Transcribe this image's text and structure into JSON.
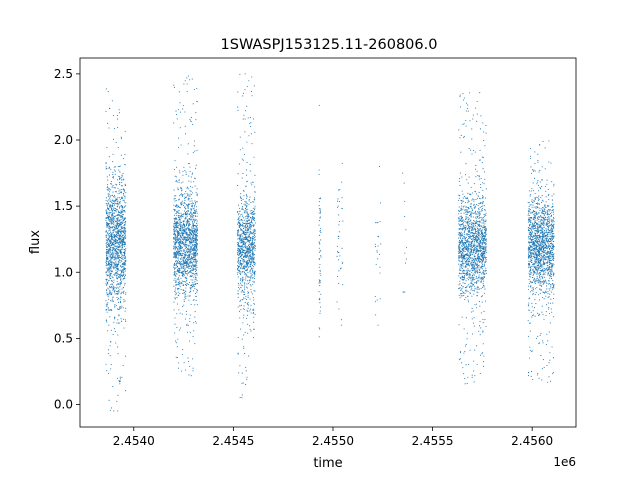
{
  "chart_data": {
    "type": "scatter",
    "title": "1SWASPJ153125.11-260806.0",
    "xlabel": "time",
    "ylabel": "flux",
    "x_offset_label": "1e6",
    "x_scale": 1000000,
    "xlim": [
      2.45373,
      2.45622
    ],
    "ylim": [
      -0.17,
      2.62
    ],
    "x_ticks": [
      2.454,
      2.4545,
      2.455,
      2.4555,
      2.456
    ],
    "x_tick_labels": [
      "2.4540",
      "2.4545",
      "2.4550",
      "2.4555",
      "2.4560"
    ],
    "y_ticks": [
      0.0,
      0.5,
      1.0,
      1.5,
      2.0,
      2.5
    ],
    "y_tick_labels": [
      "0.0",
      "0.5",
      "1.0",
      "1.5",
      "2.0",
      "2.5"
    ],
    "grid": false,
    "marker_color": "#1f77b4",
    "marker": "point",
    "seasons": [
      {
        "x_range": [
          2.45386,
          2.45396
        ],
        "center": 1.22,
        "spread": 0.24,
        "y_range": [
          -0.05,
          2.46
        ],
        "n": 1400
      },
      {
        "x_range": [
          2.4542,
          2.45432
        ],
        "center": 1.22,
        "spread": 0.2,
        "y_range": [
          0.18,
          2.49
        ],
        "n": 1500
      },
      {
        "x_range": [
          2.45452,
          2.45461
        ],
        "center": 1.18,
        "spread": 0.19,
        "y_range": [
          0.05,
          2.5
        ],
        "n": 1000
      },
      {
        "x_range": [
          2.45493,
          2.45494
        ],
        "center": 1.1,
        "spread": 0.3,
        "y_range": [
          0.5,
          2.4
        ],
        "n": 60
      },
      {
        "x_range": [
          2.45502,
          2.45505
        ],
        "center": 1.2,
        "spread": 0.3,
        "y_range": [
          0.6,
          2.05
        ],
        "n": 40
      },
      {
        "x_range": [
          2.45521,
          2.45524
        ],
        "center": 1.15,
        "spread": 0.3,
        "y_range": [
          0.6,
          1.8
        ],
        "n": 25
      },
      {
        "x_range": [
          2.45535,
          2.45537
        ],
        "center": 1.2,
        "spread": 0.3,
        "y_range": [
          0.85,
          1.95
        ],
        "n": 12
      },
      {
        "x_range": [
          2.45563,
          2.45577
        ],
        "center": 1.2,
        "spread": 0.19,
        "y_range": [
          0.15,
          2.36
        ],
        "n": 1500
      },
      {
        "x_range": [
          2.45598,
          2.45611
        ],
        "center": 1.2,
        "spread": 0.18,
        "y_range": [
          0.16,
          2.0
        ],
        "n": 1500
      }
    ]
  }
}
